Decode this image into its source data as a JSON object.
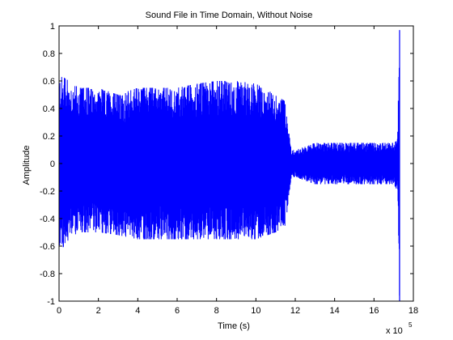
{
  "chart_data": {
    "type": "line",
    "title": "Sound File in Time Domain, Without Noise",
    "xlabel": "Time (s)",
    "ylabel": "Amplitude",
    "x_multiplier": "x 10",
    "x_multiplier_exponent": "5",
    "xlim": [
      0,
      18
    ],
    "ylim": [
      -1,
      1
    ],
    "x_ticks": [
      0,
      2,
      4,
      6,
      8,
      10,
      12,
      14,
      16,
      18
    ],
    "x_tick_labels": [
      "0",
      "2",
      "4",
      "6",
      "8",
      "10",
      "12",
      "14",
      "16",
      "18"
    ],
    "y_ticks": [
      -1,
      -0.8,
      -0.6,
      -0.4,
      -0.2,
      0,
      0.2,
      0.4,
      0.6,
      0.8,
      1
    ],
    "y_tick_labels": [
      "-1",
      "-0.8",
      "-0.6",
      "-0.4",
      "-0.2",
      "0",
      "0.2",
      "0.4",
      "0.6",
      "0.8",
      "1"
    ],
    "grid": false,
    "line_color": "#0000ff",
    "series": [
      {
        "envelope_x": [
          0,
          0.5,
          1,
          2,
          3,
          4,
          5,
          6,
          7,
          8,
          9,
          10,
          11,
          11.5,
          11.8,
          12,
          13,
          14,
          15,
          16,
          17,
          17.2,
          17.3,
          17.4
        ],
        "envelope_pos": [
          0.65,
          0.6,
          0.55,
          0.55,
          0.5,
          0.55,
          0.55,
          0.55,
          0.58,
          0.6,
          0.6,
          0.58,
          0.5,
          0.45,
          0.1,
          0.1,
          0.15,
          0.15,
          0.15,
          0.15,
          0.15,
          0.2,
          0.97,
          0.0
        ],
        "envelope_neg": [
          -0.65,
          -0.55,
          -0.5,
          -0.5,
          -0.52,
          -0.55,
          -0.55,
          -0.55,
          -0.55,
          -0.55,
          -0.55,
          -0.55,
          -0.5,
          -0.45,
          -0.1,
          -0.1,
          -0.15,
          -0.15,
          -0.15,
          -0.15,
          -0.15,
          -0.2,
          -1.0,
          0.0
        ]
      }
    ]
  }
}
